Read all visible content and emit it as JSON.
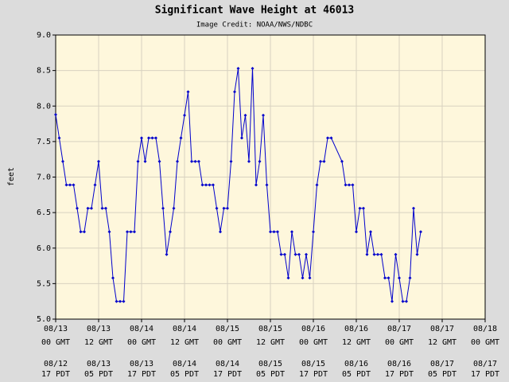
{
  "chart_data": {
    "type": "line",
    "title": "Significant Wave Height at 46013",
    "subtitle": "Image Credit: NOAA/NWS/NDBC",
    "ylabel": "feet",
    "x": [
      0,
      1,
      2,
      3,
      4,
      5,
      6,
      7,
      8,
      9,
      10,
      11,
      12,
      13,
      14,
      15,
      16,
      17,
      18,
      19,
      20,
      21,
      22,
      23,
      24,
      25,
      26,
      27,
      28,
      29,
      30,
      31,
      32,
      33,
      34,
      35,
      36,
      37,
      38,
      39,
      40,
      41,
      42,
      43,
      44,
      45,
      46,
      47,
      48,
      49,
      50,
      51,
      52,
      53,
      54,
      55,
      56,
      57,
      58,
      59,
      60,
      61,
      62,
      63,
      64,
      65,
      66,
      67,
      68,
      69,
      70,
      71,
      72,
      73,
      74,
      75,
      76,
      77,
      80,
      81,
      82,
      83,
      84,
      85,
      86,
      87,
      88,
      89,
      90,
      91,
      92,
      93,
      94,
      95,
      96,
      97,
      98,
      99,
      100,
      101,
      102
    ],
    "series": [
      {
        "name": "feet",
        "color": "#0000cc",
        "values": [
          7.88,
          7.55,
          7.22,
          6.89,
          6.89,
          6.89,
          6.56,
          6.23,
          6.23,
          6.56,
          6.56,
          6.89,
          7.22,
          6.56,
          6.56,
          6.23,
          5.58,
          5.25,
          5.25,
          5.25,
          6.23,
          6.23,
          6.23,
          7.22,
          7.55,
          7.22,
          7.55,
          7.55,
          7.55,
          7.22,
          6.56,
          5.91,
          6.23,
          6.56,
          7.22,
          7.55,
          7.87,
          8.2,
          7.22,
          7.22,
          7.22,
          6.89,
          6.89,
          6.89,
          6.89,
          6.56,
          6.23,
          6.56,
          6.56,
          7.22,
          8.2,
          8.53,
          7.55,
          7.87,
          7.22,
          8.53,
          6.89,
          7.22,
          7.87,
          6.89,
          6.23,
          6.23,
          6.23,
          5.91,
          5.91,
          5.58,
          6.23,
          5.91,
          5.91,
          5.58,
          5.91,
          5.58,
          6.23,
          6.89,
          7.22,
          7.22,
          7.55,
          7.55,
          7.22,
          6.89,
          6.89,
          6.89,
          6.23,
          6.56,
          6.56,
          5.91,
          6.23,
          5.91,
          5.91,
          5.91,
          5.58,
          5.58,
          5.25,
          5.91,
          5.58,
          5.25,
          5.25,
          5.58,
          6.56,
          5.91,
          6.23
        ]
      }
    ],
    "xlim": [
      0,
      120
    ],
    "xticks": [
      {
        "value": 0,
        "label": "08/13",
        "time": "00 GMT",
        "local_date": "08/12",
        "local_time": "17 PDT"
      },
      {
        "value": 12,
        "label": "08/13",
        "time": "12 GMT",
        "local_date": "08/13",
        "local_time": "05 PDT"
      },
      {
        "value": 24,
        "label": "08/14",
        "time": "00 GMT",
        "local_date": "08/13",
        "local_time": "17 PDT"
      },
      {
        "value": 36,
        "label": "08/14",
        "time": "12 GMT",
        "local_date": "08/14",
        "local_time": "05 PDT"
      },
      {
        "value": 48,
        "label": "08/15",
        "time": "00 GMT",
        "local_date": "08/14",
        "local_time": "17 PDT"
      },
      {
        "value": 60,
        "label": "08/15",
        "time": "12 GMT",
        "local_date": "08/15",
        "local_time": "05 PDT"
      },
      {
        "value": 72,
        "label": "08/16",
        "time": "00 GMT",
        "local_date": "08/15",
        "local_time": "17 PDT"
      },
      {
        "value": 84,
        "label": "08/16",
        "time": "12 GMT",
        "local_date": "08/16",
        "local_time": "05 PDT"
      },
      {
        "value": 96,
        "label": "08/17",
        "time": "00 GMT",
        "local_date": "08/16",
        "local_time": "17 PDT"
      },
      {
        "value": 108,
        "label": "08/17",
        "time": "12 GMT",
        "local_date": "08/17",
        "local_time": "05 PDT"
      },
      {
        "value": 120,
        "label": "08/18",
        "time": "00 GMT",
        "local_date": "08/17",
        "local_time": "17 PDT"
      }
    ],
    "ylim": [
      5,
      9
    ],
    "yticks": [
      {
        "value": 5,
        "label": "5.0"
      },
      {
        "value": 5.5,
        "label": "5.5"
      },
      {
        "value": 6,
        "label": "6.0"
      },
      {
        "value": 6.5,
        "label": "6.5"
      },
      {
        "value": 7,
        "label": "7.0"
      },
      {
        "value": 7.5,
        "label": "7.5"
      },
      {
        "value": 8,
        "label": "8.0"
      },
      {
        "value": 8.5,
        "label": "8.5"
      },
      {
        "value": 9,
        "label": "9.0"
      }
    ],
    "grid": true
  }
}
